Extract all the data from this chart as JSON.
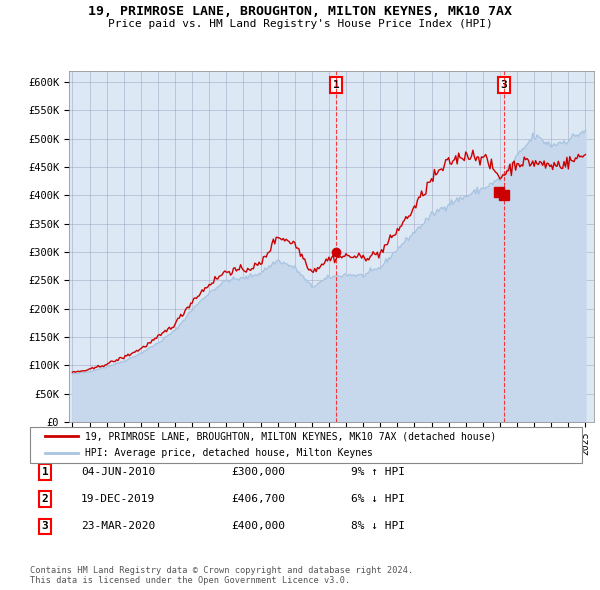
{
  "title1": "19, PRIMROSE LANE, BROUGHTON, MILTON KEYNES, MK10 7AX",
  "title2": "Price paid vs. HM Land Registry's House Price Index (HPI)",
  "ylim": [
    0,
    620000
  ],
  "yticks": [
    0,
    50000,
    100000,
    150000,
    200000,
    250000,
    300000,
    350000,
    400000,
    450000,
    500000,
    550000,
    600000
  ],
  "ytick_labels": [
    "£0",
    "£50K",
    "£100K",
    "£150K",
    "£200K",
    "£250K",
    "£300K",
    "£350K",
    "£400K",
    "£450K",
    "£500K",
    "£550K",
    "£600K"
  ],
  "hpi_color": "#a8c4e0",
  "hpi_fill_color": "#c8d8ec",
  "price_color": "#cc0000",
  "bg_color": "#dce8f4",
  "ann1_x": 2010.42,
  "ann1_y": 300000,
  "ann2_x": 2019.96,
  "ann2_y": 406700,
  "ann3_x": 2020.22,
  "ann3_y": 400000,
  "xlim_start": 1994.8,
  "xlim_end": 2025.5,
  "legend_price_label": "19, PRIMROSE LANE, BROUGHTON, MILTON KEYNES, MK10 7AX (detached house)",
  "legend_hpi_label": "HPI: Average price, detached house, Milton Keynes",
  "table_rows": [
    {
      "num": "1",
      "date": "04-JUN-2010",
      "price": "£300,000",
      "hpi": "9% ↑ HPI"
    },
    {
      "num": "2",
      "date": "19-DEC-2019",
      "price": "£406,700",
      "hpi": "6% ↓ HPI"
    },
    {
      "num": "3",
      "date": "23-MAR-2020",
      "price": "£400,000",
      "hpi": "8% ↓ HPI"
    }
  ],
  "footer": "Contains HM Land Registry data © Crown copyright and database right 2024.\nThis data is licensed under the Open Government Licence v3.0."
}
